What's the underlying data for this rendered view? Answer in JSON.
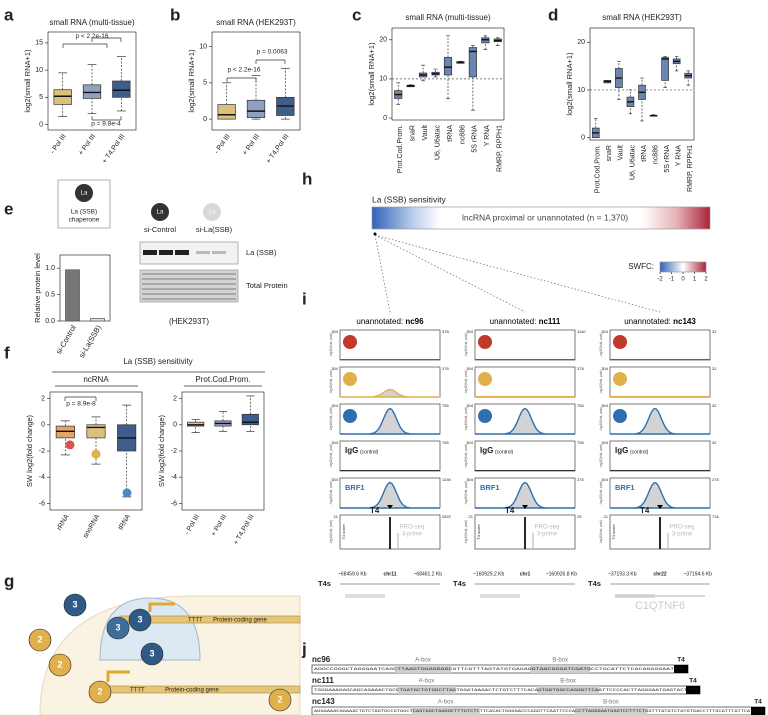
{
  "panel_letters": [
    "a",
    "b",
    "c",
    "d",
    "e",
    "f",
    "g",
    "h",
    "i",
    "j"
  ],
  "panels": {
    "a": {
      "type": "box",
      "title": "small RNA (multi-tissue)",
      "ylabel": "log2(small RNA+1)",
      "ylim": [
        -1,
        17
      ],
      "yticks": [
        0,
        5,
        10,
        15
      ],
      "categories": [
        "- Pol III",
        "+ Pol III",
        "+ T4,Pol III"
      ],
      "colors": [
        "#dcc07e",
        "#8fa0c0",
        "#3f5d8c"
      ],
      "boxes": [
        {
          "whislo": 1.5,
          "q1": 3.7,
          "med": 5.2,
          "q3": 6.4,
          "whishi": 9.5
        },
        {
          "whislo": 2,
          "q1": 4.8,
          "med": 5.9,
          "q3": 7.3,
          "whishi": 11
        },
        {
          "whislo": 2.5,
          "q1": 5,
          "med": 6.3,
          "q3": 8,
          "whishi": 12.5
        }
      ],
      "annotations": [
        "p < 2.2e-16",
        "p = 9.8e-4"
      ]
    },
    "b": {
      "type": "box",
      "title": "small RNA (HEK293T)",
      "ylabel": "log2(small RNA+1)",
      "ylim": [
        -1.5,
        12
      ],
      "yticks": [
        0,
        5,
        10
      ],
      "categories": [
        "- Pol III",
        "+ Pol III",
        "+ T4,Pol III"
      ],
      "colors": [
        "#dcc07e",
        "#8fa0c0",
        "#3f5d8c"
      ],
      "boxes": [
        {
          "whislo": 0,
          "q1": 0,
          "med": 0.6,
          "q3": 2,
          "whishi": 5
        },
        {
          "whislo": 0,
          "q1": 0.2,
          "med": 1.1,
          "q3": 2.6,
          "whishi": 6
        },
        {
          "whislo": 0,
          "q1": 0.5,
          "med": 1.8,
          "q3": 3,
          "whishi": 7
        }
      ],
      "annotations": [
        "p < 2.2e-16",
        "p = 0.0063"
      ]
    },
    "c": {
      "type": "box",
      "title": "small RNA (multi-tissue)",
      "ylabel": "log2(small RNA+1)",
      "ylim": [
        -0.5,
        23
      ],
      "yticks": [
        0,
        10,
        20
      ],
      "reference_line": 10,
      "categories": [
        "Prot.Cod.Prom.",
        "snaR",
        "Vault",
        "U6, U6atac",
        "tRNA",
        "nc886",
        "5S rRNA",
        "Y RNA",
        "RMRP, RPPH1"
      ],
      "colors": [
        "#6a86b0"
      ],
      "boxes": [
        {
          "whislo": 3.5,
          "q1": 5,
          "med": 6,
          "q3": 7,
          "whishi": 9
        },
        {
          "whislo": 8,
          "q1": 8,
          "med": 8.2,
          "q3": 8.4,
          "whishi": 8.5
        },
        {
          "whislo": 9.5,
          "q1": 10.5,
          "med": 11,
          "q3": 11.5,
          "whishi": 13.5
        },
        {
          "whislo": 10.5,
          "q1": 11,
          "med": 11.3,
          "q3": 11.7,
          "whishi": 12.5
        },
        {
          "whislo": 5,
          "q1": 11,
          "med": 13,
          "q3": 15.5,
          "whishi": 21
        },
        {
          "whislo": 14,
          "q1": 14,
          "med": 14.2,
          "q3": 14.4,
          "whishi": 14.5
        },
        {
          "whislo": 2,
          "q1": 10.5,
          "med": 17,
          "q3": 18,
          "whishi": 18.5
        },
        {
          "whislo": 17.5,
          "q1": 19.2,
          "med": 20,
          "q3": 20.5,
          "whishi": 21
        },
        {
          "whislo": 18.5,
          "q1": 19.5,
          "med": 19.8,
          "q3": 20.2,
          "whishi": 20.5
        }
      ]
    },
    "d": {
      "type": "box",
      "title": "small RNA (HEK293T)",
      "ylabel": "log2(small RNA+1)",
      "ylim": [
        -0.5,
        23
      ],
      "yticks": [
        0,
        10,
        20
      ],
      "reference_line": 10,
      "categories": [
        "Prot.Cod.Prom.",
        "snaR",
        "Vault",
        "U6, U6atac",
        "tRNA",
        "nc886",
        "5S rRNA",
        "Y RNA",
        "RMRP, RPPH1"
      ],
      "colors": [
        "#6a86b0"
      ],
      "boxes": [
        {
          "whislo": 0,
          "q1": 0,
          "med": 1,
          "q3": 2,
          "whishi": 4
        },
        {
          "whislo": 11.5,
          "q1": 11.5,
          "med": 11.8,
          "q3": 12,
          "whishi": 12
        },
        {
          "whislo": 8,
          "q1": 10.5,
          "med": 12.5,
          "q3": 14.5,
          "whishi": 16
        },
        {
          "whislo": 5,
          "q1": 6.5,
          "med": 7.5,
          "q3": 8.5,
          "whishi": 10
        },
        {
          "whislo": 3.5,
          "q1": 8,
          "med": 9.5,
          "q3": 11,
          "whishi": 12.5
        },
        {
          "whislo": 4.5,
          "q1": 4.5,
          "med": 4.6,
          "q3": 4.7,
          "whishi": 4.8
        },
        {
          "whislo": 10.5,
          "q1": 12,
          "med": 16.5,
          "q3": 16.8,
          "whishi": 17
        },
        {
          "whislo": 14,
          "q1": 15.5,
          "med": 16,
          "q3": 16.5,
          "whishi": 17
        },
        {
          "whislo": 11,
          "q1": 12.5,
          "med": 13,
          "q3": 13.5,
          "whishi": 14
        }
      ]
    },
    "e": {
      "type": "bar",
      "icon_label": "La",
      "icon_caption": [
        "La (SSB)",
        "chaperone"
      ],
      "ylabel": "Relative protein level",
      "ylim": [
        0,
        1.25
      ],
      "yticks": [
        {
          "value": 0,
          "label": "0.0"
        },
        {
          "value": 0.5,
          "label": "0.5"
        },
        {
          "value": 1,
          "label": "1.0"
        }
      ],
      "categories": [
        "si-Control",
        "si-La(SSB)"
      ],
      "values": [
        0.97,
        0.05
      ],
      "colors": [
        "#777777",
        "#e2e2e2"
      ],
      "blot_lanes": [
        "si-Control",
        "si-La(SSB)"
      ],
      "blot_rows": [
        "La (SSB)",
        "Total Protein"
      ],
      "cell_line": "(HEK293T)"
    },
    "f": {
      "title": "La (SSB) sensitivity",
      "plots": [
        {
          "type": "box",
          "title": "ncRNA",
          "ylabel": "SW log2(fold change)",
          "ylim": [
            -6.5,
            2.5
          ],
          "yticks": [
            -6,
            -4,
            -2,
            0,
            2
          ],
          "categories": [
            "rRNA",
            "snoRNA",
            "tRNA"
          ],
          "colors": [
            "#e0a868",
            "#dcc07e",
            "#3f5d8c"
          ],
          "boxes": [
            {
              "whislo": -2.3,
              "q1": -1,
              "med": -0.5,
              "q3": -0.1,
              "whishi": 0.3
            },
            {
              "whislo": -3,
              "q1": -1,
              "med": -0.2,
              "q3": 0,
              "whishi": 0.6
            },
            {
              "whislo": -5.5,
              "q1": -2,
              "med": -1,
              "q3": 0,
              "whishi": 1.5
            }
          ],
          "annotations": [
            "p = 8.9e-8"
          ]
        },
        {
          "type": "box",
          "title": "Prot.Cod.Prom.",
          "ylabel": "SW log2(fold change)",
          "ylim": [
            -6.5,
            2.5
          ],
          "yticks": [
            -6,
            -4,
            -2,
            0,
            2
          ],
          "categories": [
            "- Pol III",
            "+ Pol III",
            "+ T4,Pol III"
          ],
          "colors": [
            "#dcc07e",
            "#8fa0c0",
            "#3f5d8c"
          ],
          "boxes": [
            {
              "whislo": -0.6,
              "q1": -0.1,
              "med": 0,
              "q3": 0.2,
              "whishi": 0.4
            },
            {
              "whislo": -0.5,
              "q1": -0.1,
              "med": 0.1,
              "q3": 0.3,
              "whishi": 1
            },
            {
              "whislo": -0.5,
              "q1": 0,
              "med": 0.2,
              "q3": 0.8,
              "whishi": 2.2
            }
          ]
        }
      ]
    },
    "g": {
      "gene_label": "Protein-coding gene",
      "terminator": "TTTT",
      "polymerase_labels": [
        "3",
        "2"
      ]
    },
    "h": {
      "title": "La (SSB) sensitivity",
      "bar_label": "lncRNA proximal or unannotated (n = 1,370)",
      "legend_title": "SWFC:",
      "legend_lim": [
        -2,
        2
      ],
      "legend_ticks": [
        -2,
        -1,
        0,
        1,
        2
      ]
    },
    "i": {
      "prefix": "unannotated: ",
      "control_label": "IgG",
      "control_note": "(control)",
      "brf1_label": "BRF1",
      "t4_label": "T4",
      "t4_score": "T4 score",
      "proseq": "PRO-seq",
      "proseq_note": "3-prime",
      "t4s_label": "T4s",
      "axis_label": "-log10(fold, pval)",
      "columns": [
        {
          "name": "nc96",
          "coord_left": "~68459.6 Kb",
          "chrom": "chr11",
          "coord_right": "~68461.2 Kb",
          "left_max": [
            "304",
            "304",
            "304",
            "304",
            "304",
            "21"
          ],
          "right_max": [
            "378",
            "378",
            "755",
            "755",
            "1240",
            "2822"
          ]
        },
        {
          "name": "nc111",
          "coord_left": "~160925.2 Kb",
          "chrom": "chr1",
          "coord_right": "~160926.8 Kb",
          "left_max": [
            "304",
            "304",
            "304",
            "304",
            "304",
            "21"
          ],
          "right_max": [
            "1140",
            "378",
            "755",
            "755",
            "275",
            "25"
          ]
        },
        {
          "name": "nc143",
          "coord_left": "~37193.3 Kb",
          "chrom": "chr22",
          "coord_right": "~37194.6 Kb",
          "gene": "C1QTNF6",
          "left_max": [
            "304",
            "304",
            "304",
            "304",
            "304",
            "21"
          ],
          "right_max": [
            "32",
            "32",
            "32",
            "32",
            "275",
            "716"
          ]
        }
      ]
    },
    "j": {
      "a_box": "A-box",
      "b_box": "B-box",
      "t4_label": "T4",
      "sequences": [
        {
          "name": "nc96",
          "seq": "AGGCCGGGCTAGGGAATCAGCTTAAGTGGAGGAGCGTTCGTTTAGTATGTGAGAGGTAACGGGATCGATGCCTGCATTCTCACAGGGGAATTTT"
        },
        {
          "name": "nc111",
          "seq": "TGGGAAAGAGCAGCAGAAACTGCCTGATGCTGTGGCTTAGTGGATAAGACTCTGTCTTTCACAGTGGTGGCCAGGGTTCAATTCCCCACTTAGGGAATGAGTACTTTT"
        },
        {
          "name": "nc143",
          "seq": "AGGAAAACAGAAACTGTCTAGTGCCGTGGCTCAGTAGCTAAGGCTTTGTCTCTTCACACTGGGGACCCAGGTTCAATTCCCACCTTAGGGAATGAGTCCTTTCTGGTTTATATCTATGTGACCTTTGCATTTATTCATTTT"
        }
      ]
    }
  }
}
